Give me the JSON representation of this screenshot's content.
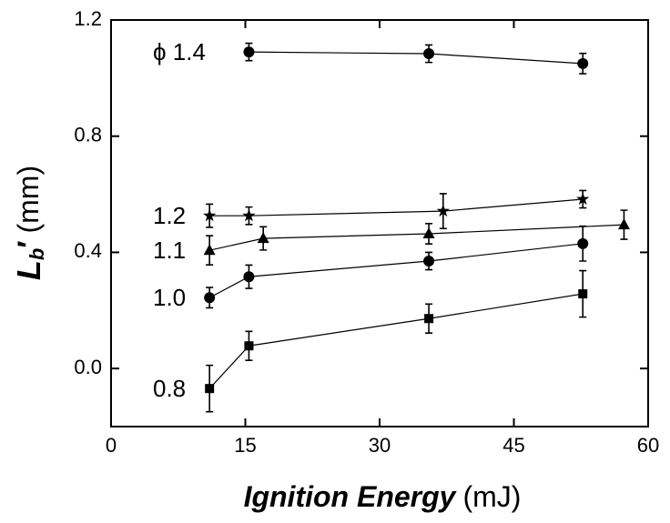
{
  "chart_data": {
    "type": "line",
    "x_label": [
      "Ignition Energy",
      "(mJ)"
    ],
    "y_label": [
      "L",
      "b",
      "′",
      "(mm)"
    ],
    "xlim": [
      0,
      60
    ],
    "xticks": [
      0,
      15,
      30,
      45,
      60
    ],
    "ylim": [
      -0.2,
      1.2
    ],
    "yticks": [
      {
        "value": 0,
        "label": "0.0"
      },
      0.4,
      0.8,
      1.2
    ],
    "color": "#000000",
    "series": [
      {
        "name": "ϕ 1.4",
        "marker": "circle",
        "x": [
          15.4,
          35.5,
          52.7
        ],
        "values": [
          1.09,
          1.084,
          1.05
        ],
        "errors": [
          0.03,
          0.03,
          0.035
        ]
      },
      {
        "name": "1.2",
        "marker": "star",
        "x": [
          11,
          15.4,
          37.1,
          52.7
        ],
        "values": [
          0.526,
          0.526,
          0.542,
          0.583
        ],
        "errors": [
          0.04,
          0.03,
          0.06,
          0.03
        ]
      },
      {
        "name": "1.1",
        "marker": "triangle",
        "x": [
          11,
          17,
          35.5,
          57.3
        ],
        "values": [
          0.407,
          0.448,
          0.464,
          0.495
        ],
        "errors": [
          0.05,
          0.04,
          0.035,
          0.05
        ]
      },
      {
        "name": "1.0",
        "marker": "circle",
        "x": [
          11,
          15.4,
          35.5,
          52.7
        ],
        "values": [
          0.244,
          0.316,
          0.37,
          0.43
        ],
        "errors": [
          0.035,
          0.04,
          0.03,
          0.06
        ]
      },
      {
        "name": "0.8",
        "marker": "square",
        "x": [
          11,
          15.4,
          35.5,
          52.7
        ],
        "values": [
          -0.069,
          0.078,
          0.172,
          0.257
        ],
        "errors": [
          0.08,
          0.05,
          0.05,
          0.08
        ]
      }
    ]
  }
}
